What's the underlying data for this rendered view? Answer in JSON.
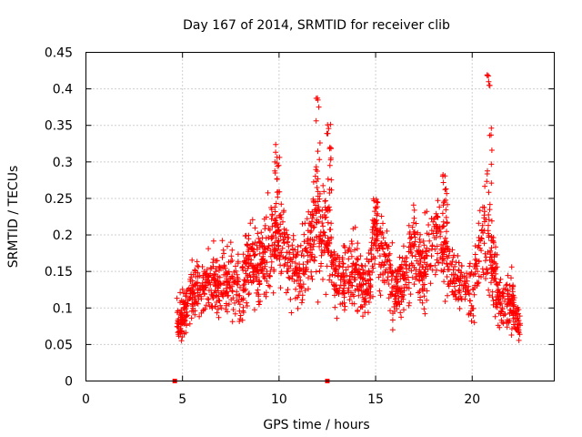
{
  "chart_data": {
    "type": "scatter",
    "title": "Day 167 of 2014, SRMTID for receiver clib",
    "xlabel": "GPS time / hours",
    "ylabel": "SRMTID / TECUs",
    "xlim": [
      0,
      24.25
    ],
    "ylim": [
      0,
      0.45
    ],
    "xticks": [
      0,
      5,
      10,
      15,
      20
    ],
    "yticks": [
      0,
      0.05,
      0.1,
      0.15,
      0.2,
      0.25,
      0.3,
      0.35,
      0.4,
      0.45
    ],
    "xtick_labels": [
      "0",
      "5",
      "10",
      "15",
      "20"
    ],
    "ytick_labels": [
      "0",
      "0.05",
      "0.1",
      "0.15",
      "0.2",
      "0.25",
      "0.3",
      "0.35",
      "0.4",
      "0.45"
    ],
    "grid": true,
    "marker": "+",
    "marker_color": "#ff0000",
    "zero_markers": [
      {
        "x": 4.6,
        "y": 0
      },
      {
        "x": 12.5,
        "y": 0
      }
    ],
    "envelope": [
      {
        "x": 4.7,
        "y": 0.085
      },
      {
        "x": 5.0,
        "y": 0.09
      },
      {
        "x": 5.5,
        "y": 0.12
      },
      {
        "x": 6.0,
        "y": 0.125
      },
      {
        "x": 6.5,
        "y": 0.13
      },
      {
        "x": 7.0,
        "y": 0.135
      },
      {
        "x": 7.5,
        "y": 0.14
      },
      {
        "x": 8.0,
        "y": 0.12
      },
      {
        "x": 8.5,
        "y": 0.17
      },
      {
        "x": 9.0,
        "y": 0.16
      },
      {
        "x": 9.5,
        "y": 0.18
      },
      {
        "x": 10.0,
        "y": 0.2
      },
      {
        "x": 10.5,
        "y": 0.17
      },
      {
        "x": 11.0,
        "y": 0.14
      },
      {
        "x": 11.5,
        "y": 0.18
      },
      {
        "x": 12.0,
        "y": 0.22
      },
      {
        "x": 12.5,
        "y": 0.2
      },
      {
        "x": 13.0,
        "y": 0.13
      },
      {
        "x": 13.5,
        "y": 0.14
      },
      {
        "x": 14.0,
        "y": 0.15
      },
      {
        "x": 14.5,
        "y": 0.12
      },
      {
        "x": 15.0,
        "y": 0.2
      },
      {
        "x": 15.5,
        "y": 0.17
      },
      {
        "x": 16.0,
        "y": 0.12
      },
      {
        "x": 16.5,
        "y": 0.14
      },
      {
        "x": 17.0,
        "y": 0.18
      },
      {
        "x": 17.5,
        "y": 0.15
      },
      {
        "x": 18.0,
        "y": 0.2
      },
      {
        "x": 18.5,
        "y": 0.19
      },
      {
        "x": 19.0,
        "y": 0.14
      },
      {
        "x": 19.5,
        "y": 0.13
      },
      {
        "x": 20.0,
        "y": 0.12
      },
      {
        "x": 20.5,
        "y": 0.2
      },
      {
        "x": 21.0,
        "y": 0.17
      },
      {
        "x": 21.5,
        "y": 0.1
      },
      {
        "x": 22.0,
        "y": 0.11
      },
      {
        "x": 22.5,
        "y": 0.07
      }
    ],
    "peaks": [
      {
        "x": 9.9,
        "y": 0.33
      },
      {
        "x": 12.0,
        "y": 0.39
      },
      {
        "x": 12.6,
        "y": 0.36
      },
      {
        "x": 15.0,
        "y": 0.25
      },
      {
        "x": 18.6,
        "y": 0.29
      },
      {
        "x": 20.9,
        "y": 0.44
      }
    ]
  }
}
